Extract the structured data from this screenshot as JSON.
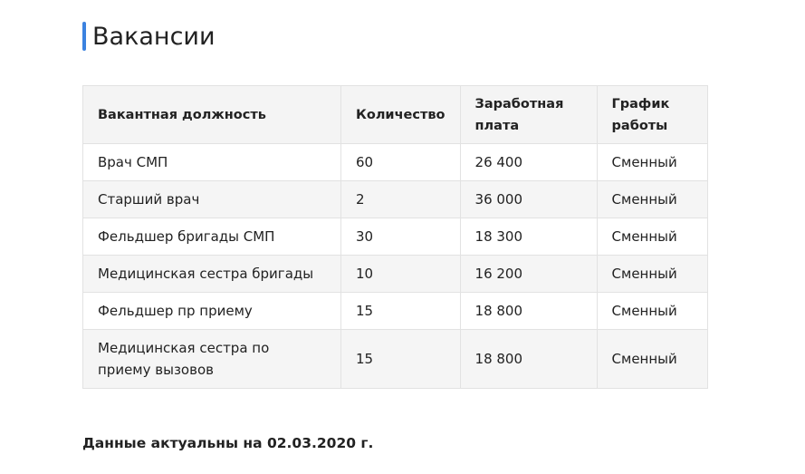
{
  "title": "Вакансии",
  "accent": "#3b82e0",
  "table": {
    "headers": [
      "Вакантная должность",
      "Количество",
      "Заработная плата",
      "График работы"
    ],
    "rows": [
      [
        "Врач СМП",
        "60",
        "26 400",
        "Сменный"
      ],
      [
        "Старший врач",
        "2",
        "36 000",
        "Сменный"
      ],
      [
        "Фельдшер бригады СМП",
        "30",
        "18 300",
        "Сменный"
      ],
      [
        "Медицинская сестра бригады",
        "10",
        "16 200",
        "Сменный"
      ],
      [
        "Фельдшер пр приему",
        "15",
        "18 800",
        "Сменный"
      ],
      [
        "Медицинская сестра по приему вызовов",
        "15",
        "18 800",
        "Сменный"
      ]
    ]
  },
  "note": "Данные актуальны на 02.03.2020 г."
}
